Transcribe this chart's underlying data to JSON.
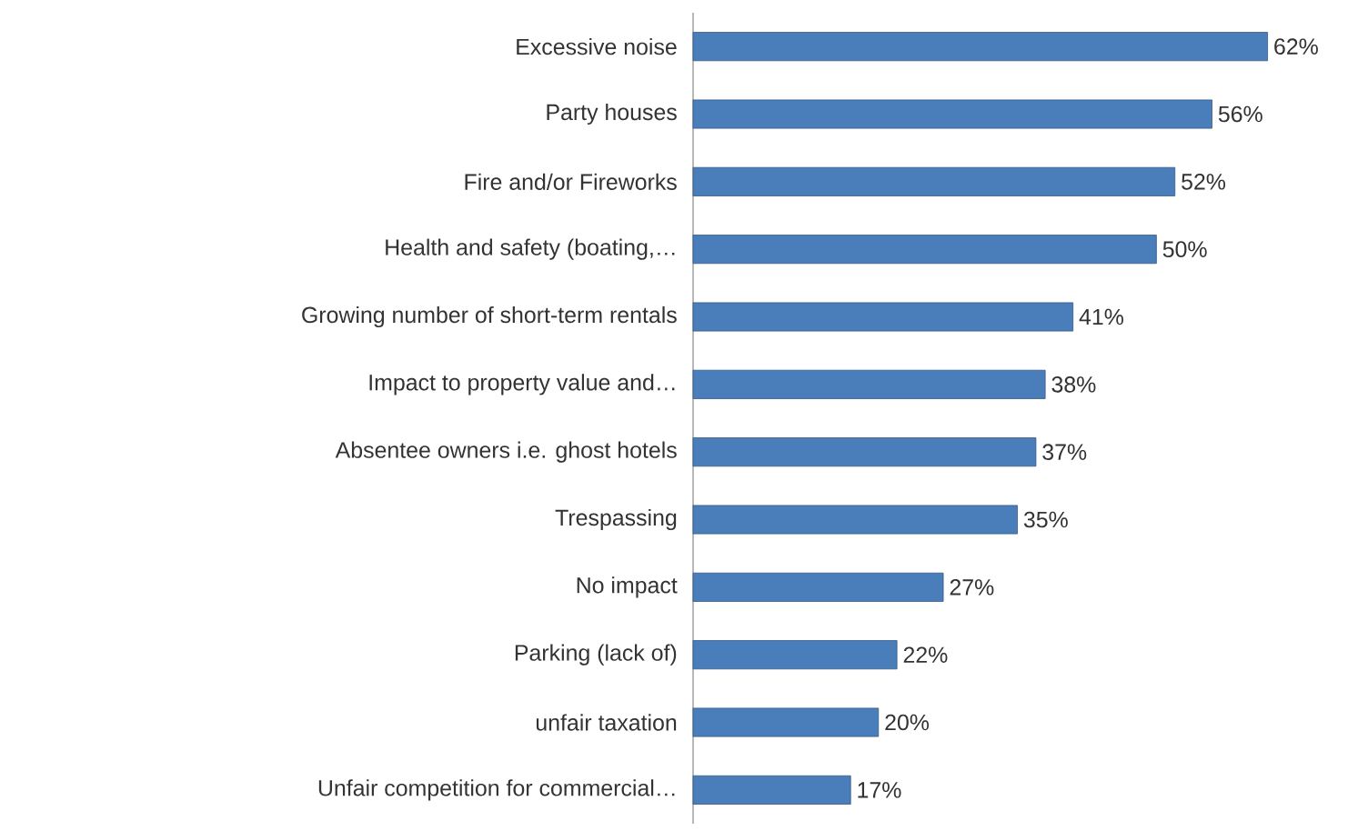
{
  "chart_data": {
    "type": "bar",
    "orientation": "horizontal",
    "color": "#4a7ebb",
    "categories": [
      "Excessive noise",
      "Party houses",
      "Fire and/or Fireworks",
      "Health and safety (boating,…",
      "Growing number of short-term rentals",
      "Impact to property value and…",
      "Absentee owners i.e. ghost hotels",
      "Trespassing",
      "No impact",
      "Parking (lack of)",
      "unfair taxation",
      "Unfair competition for commercial…"
    ],
    "values": [
      62,
      56,
      52,
      50,
      41,
      38,
      37,
      35,
      27,
      22,
      20,
      17
    ],
    "value_labels": [
      "62%",
      "56%",
      "52%",
      "50%",
      "41%",
      "38%",
      "37%",
      "35%",
      "27%",
      "22%",
      "20%",
      "17%"
    ]
  }
}
